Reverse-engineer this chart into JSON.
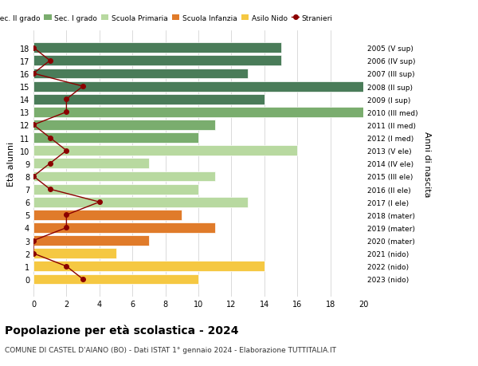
{
  "ages": [
    18,
    17,
    16,
    15,
    14,
    13,
    12,
    11,
    10,
    9,
    8,
    7,
    6,
    5,
    4,
    3,
    2,
    1,
    0
  ],
  "right_labels": [
    "2005 (V sup)",
    "2006 (IV sup)",
    "2007 (III sup)",
    "2008 (II sup)",
    "2009 (I sup)",
    "2010 (III med)",
    "2011 (II med)",
    "2012 (I med)",
    "2013 (V ele)",
    "2014 (IV ele)",
    "2015 (III ele)",
    "2016 (II ele)",
    "2017 (I ele)",
    "2018 (mater)",
    "2019 (mater)",
    "2020 (mater)",
    "2021 (nido)",
    "2022 (nido)",
    "2023 (nido)"
  ],
  "bar_values": [
    15,
    15,
    13,
    20,
    14,
    20,
    11,
    10,
    16,
    7,
    11,
    10,
    13,
    9,
    11,
    7,
    5,
    14,
    10
  ],
  "bar_colors": [
    "#4a7c59",
    "#4a7c59",
    "#4a7c59",
    "#4a7c59",
    "#4a7c59",
    "#7aad6e",
    "#7aad6e",
    "#7aad6e",
    "#b8d9a0",
    "#b8d9a0",
    "#b8d9a0",
    "#b8d9a0",
    "#b8d9a0",
    "#e07b2a",
    "#e07b2a",
    "#e07b2a",
    "#f5c842",
    "#f5c842",
    "#f5c842"
  ],
  "stranieri_values": [
    0,
    1,
    0,
    3,
    2,
    2,
    0,
    1,
    2,
    1,
    0,
    1,
    4,
    2,
    2,
    0,
    0,
    2,
    3
  ],
  "stranieri_color": "#8b0000",
  "stranieri_line_color": "#8b0000",
  "ylabel_left": "Età alunni",
  "ylabel_right": "Anni di nascita",
  "xlim": [
    0,
    20
  ],
  "xticks": [
    0,
    2,
    4,
    6,
    8,
    10,
    12,
    14,
    16,
    18,
    20
  ],
  "title": "Popolazione per età scolastica - 2024",
  "subtitle": "COMUNE DI CASTEL D'AIANO (BO) - Dati ISTAT 1° gennaio 2024 - Elaborazione TUTTITALIA.IT",
  "legend_labels": [
    "Sec. II grado",
    "Sec. I grado",
    "Scuola Primaria",
    "Scuola Infanzia",
    "Asilo Nido",
    "Stranieri"
  ],
  "legend_colors": [
    "#4a7c59",
    "#7aad6e",
    "#b8d9a0",
    "#e07b2a",
    "#f5c842",
    "#8b0000"
  ],
  "background_color": "#ffffff",
  "grid_color": "#cccccc",
  "bar_height": 0.8
}
